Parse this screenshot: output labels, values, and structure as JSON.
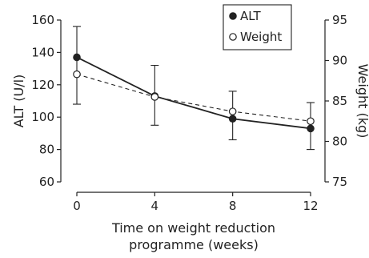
{
  "chart_data": {
    "type": "line",
    "xlabel": "Time on weight reduction\nprogramme (weeks)",
    "x": [
      0,
      4,
      8,
      12
    ],
    "xticks": [
      "0",
      "4",
      "8",
      "12"
    ],
    "xlim": [
      0,
      12
    ],
    "y_left": {
      "label": "ALT (U/l)",
      "lim": [
        60,
        160
      ],
      "ticks": [
        "60",
        "80",
        "100",
        "120",
        "140",
        "160"
      ]
    },
    "y_right": {
      "label": "Weight (kg)",
      "lim": [
        75,
        95
      ],
      "ticks": [
        "75",
        "80",
        "85",
        "90",
        "95"
      ]
    },
    "series": [
      {
        "name": "ALT",
        "axis": "left",
        "marker": "filled-circle",
        "line": "solid",
        "values": [
          137,
          113,
          99,
          93
        ],
        "error_low": [
          108,
          95,
          86,
          80
        ],
        "error_high": [
          156,
          132,
          116,
          109
        ]
      },
      {
        "name": "Weight",
        "axis": "right",
        "marker": "open-circle",
        "line": "dashed",
        "values": [
          88.3,
          85.5,
          83.7,
          82.5
        ]
      }
    ],
    "legend": {
      "placement": "top-right",
      "border": true
    },
    "colors": {
      "ink": "#222222",
      "background": "#ffffff"
    }
  }
}
